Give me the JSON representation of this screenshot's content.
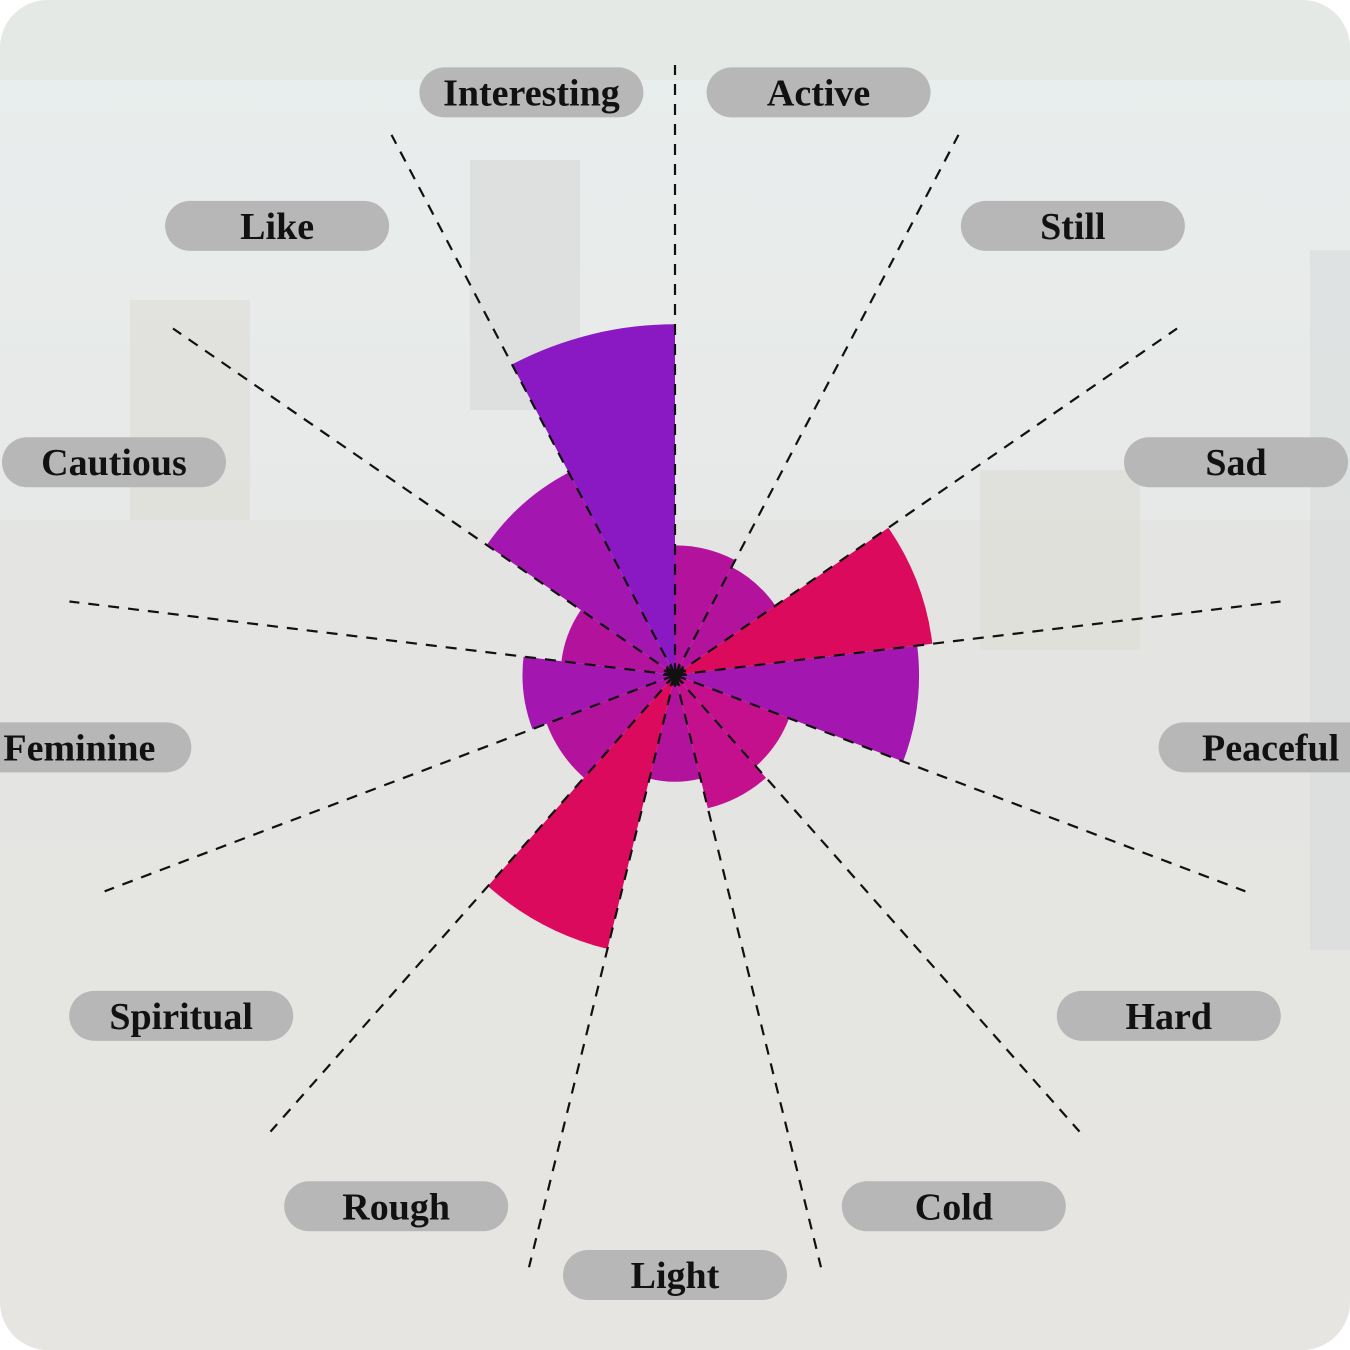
{
  "chart_data": {
    "type": "polar-bar",
    "title": "",
    "categories": [
      "Active",
      "Still",
      "Sad",
      "Peaceful",
      "Hard",
      "Cold",
      "Light",
      "Rough",
      "Spiritual",
      "Feminine",
      "Cautious",
      "Like",
      "Interesting"
    ],
    "values": [
      1.7,
      1.6,
      3.4,
      3.2,
      1.6,
      1.8,
      1.4,
      3.7,
      1.8,
      2.0,
      1.5,
      3.0,
      4.6
    ],
    "colors": [
      "#b3129c",
      "#b3129c",
      "#dc0a5c",
      "#a416b0",
      "#c5108e",
      "#c5108e",
      "#b3129c",
      "#dc0a5c",
      "#b3129c",
      "#a416b0",
      "#b3129c",
      "#a416b0",
      "#8a19c4"
    ],
    "rmax": 8,
    "center_mark": "star",
    "grid": "dashed radial dividers"
  }
}
